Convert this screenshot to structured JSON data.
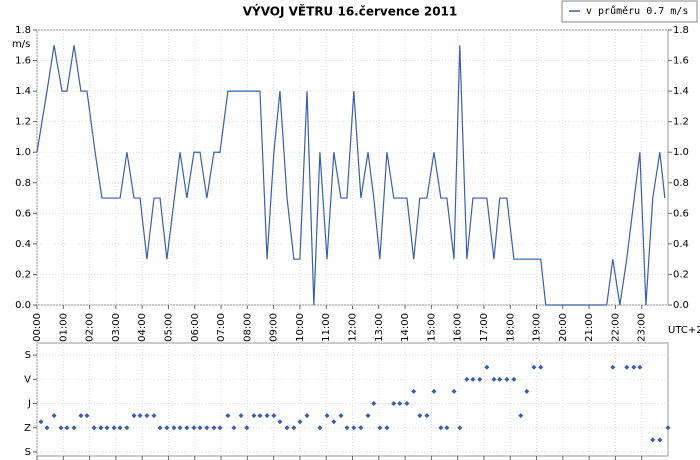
{
  "chart_data": [
    {
      "type": "line",
      "title": "VÝVOJ VĚTRU  16.července 2011",
      "y_label": "m/s",
      "x_label": "UTC+2",
      "grid": true,
      "xlim": [
        0,
        24
      ],
      "ylim": [
        0,
        1.8
      ],
      "y2lim": [
        0,
        1.8
      ],
      "xticks": [
        {
          "value": 0,
          "label": "00:00"
        },
        {
          "value": 1,
          "label": "01:00"
        },
        {
          "value": 2,
          "label": "02:00"
        },
        {
          "value": 3,
          "label": "03:00"
        },
        {
          "value": 4,
          "label": "04:00"
        },
        {
          "value": 5,
          "label": "05:00"
        },
        {
          "value": 6,
          "label": "06:00"
        },
        {
          "value": 7,
          "label": "07:00"
        },
        {
          "value": 8,
          "label": "08:00"
        },
        {
          "value": 9,
          "label": "09:00"
        },
        {
          "value": 10,
          "label": "10:00"
        },
        {
          "value": 11,
          "label": "11:00"
        },
        {
          "value": 12,
          "label": "12:00"
        },
        {
          "value": 13,
          "label": "13:00"
        },
        {
          "value": 14,
          "label": "14:00"
        },
        {
          "value": 15,
          "label": "15:00"
        },
        {
          "value": 16,
          "label": "16:00"
        },
        {
          "value": 17,
          "label": "17:00"
        },
        {
          "value": 18,
          "label": "18:00"
        },
        {
          "value": 19,
          "label": "19:00"
        },
        {
          "value": 20,
          "label": "20:00"
        },
        {
          "value": 21,
          "label": "21:00"
        },
        {
          "value": 22,
          "label": "22:00"
        },
        {
          "value": 23,
          "label": "23:00"
        }
      ],
      "yticks": [
        {
          "value": 0,
          "label": "0.0"
        },
        {
          "value": 0.2,
          "label": "0.2"
        },
        {
          "value": 0.4,
          "label": "0.4"
        },
        {
          "value": 0.6,
          "label": "0.6"
        },
        {
          "value": 0.8,
          "label": "0.8"
        },
        {
          "value": 1,
          "label": "1.0"
        },
        {
          "value": 1.2,
          "label": "1.2"
        },
        {
          "value": 1.4,
          "label": "1.4"
        },
        {
          "value": 1.6,
          "label": "1.6"
        },
        {
          "value": 1.8,
          "label": "1.8"
        }
      ],
      "y2ticks": [
        {
          "value": 0,
          "label": "0.0"
        },
        {
          "value": 0.2,
          "label": "0.2"
        },
        {
          "value": 0.4,
          "label": "0.4"
        },
        {
          "value": 0.6,
          "label": "0.6"
        },
        {
          "value": 0.8,
          "label": "0.8"
        },
        {
          "value": 1,
          "label": "1.0"
        },
        {
          "value": 1.2,
          "label": "1.2"
        },
        {
          "value": 1.4,
          "label": "1.4"
        },
        {
          "value": 1.6,
          "label": "1.6"
        },
        {
          "value": 1.8,
          "label": "1.8"
        }
      ],
      "series": [
        {
          "name": "v průměru 0.7 m/s",
          "color": "#3a5fa8",
          "x": [
            0,
            0.38,
            0.65,
            0.95,
            1.14,
            1.41,
            1.67,
            1.9,
            2.21,
            2.47,
            3.16,
            3.42,
            3.69,
            3.92,
            4.18,
            4.45,
            4.68,
            4.94,
            5.44,
            5.7,
            5.97,
            6.2,
            6.46,
            6.73,
            6.96,
            7.26,
            8.48,
            8.75,
            9.01,
            9.24,
            9.51,
            9.77,
            10.0,
            10.27,
            10.53,
            10.76,
            11.03,
            11.29,
            11.56,
            11.79,
            12.05,
            12.32,
            12.59,
            12.81,
            13.04,
            13.31,
            13.57,
            14.07,
            14.33,
            14.56,
            14.83,
            15.1,
            15.36,
            15.59,
            15.86,
            16.08,
            16.35,
            16.58,
            17.11,
            17.38,
            17.6,
            17.87,
            18.14,
            19.16,
            19.35,
            21.67,
            21.9,
            22.17,
            22.43,
            22.93,
            23.16,
            23.42,
            23.69,
            23.88
          ],
          "values": [
            1.0,
            1.4,
            1.7,
            1.4,
            1.4,
            1.7,
            1.4,
            1.4,
            1.0,
            0.7,
            0.7,
            1.0,
            0.7,
            0.7,
            0.3,
            0.7,
            0.7,
            0.3,
            1.0,
            0.7,
            1.0,
            1.0,
            0.7,
            1.0,
            1.0,
            1.4,
            1.4,
            0.3,
            1.0,
            1.4,
            0.7,
            0.3,
            0.3,
            1.4,
            0.0,
            1.0,
            0.3,
            1.0,
            0.7,
            0.7,
            1.4,
            0.7,
            1.0,
            0.7,
            0.3,
            1.0,
            0.7,
            0.7,
            0.3,
            0.7,
            0.7,
            1.0,
            0.7,
            0.7,
            0.3,
            1.7,
            0.3,
            0.7,
            0.7,
            0.3,
            0.7,
            0.7,
            0.3,
            0.3,
            0.0,
            0.0,
            0.3,
            0.0,
            0.3,
            1.0,
            0.0,
            0.7,
            1.0,
            0.7
          ]
        }
      ]
    },
    {
      "type": "scatter",
      "grid": true,
      "y_inverted": true,
      "xlim": [
        0,
        24
      ],
      "ylim": [
        -45,
        375
      ],
      "xticks": [
        0,
        1,
        2,
        3,
        4,
        5,
        6,
        7,
        8,
        9,
        10,
        11,
        12,
        13,
        14,
        15,
        16,
        17,
        18,
        19,
        20,
        21,
        22,
        23
      ],
      "yticks": [
        {
          "value": 0,
          "label": "S"
        },
        {
          "value": 90,
          "label": "V"
        },
        {
          "value": 180,
          "label": "J"
        },
        {
          "value": 270,
          "label": "Z"
        },
        {
          "value": 360,
          "label": "S"
        }
      ],
      "series": [
        {
          "color": "#3a5fa8",
          "x": [
            0.15,
            0.38,
            0.65,
            0.91,
            1.14,
            1.41,
            1.67,
            1.9,
            2.17,
            2.43,
            2.66,
            2.93,
            3.16,
            3.42,
            3.69,
            3.92,
            4.18,
            4.45,
            4.68,
            4.94,
            5.21,
            5.44,
            5.7,
            5.97,
            6.2,
            6.46,
            6.73,
            6.96,
            7.26,
            7.49,
            7.76,
            7.98,
            8.25,
            8.48,
            8.75,
            9.01,
            9.24,
            9.51,
            9.77,
            10.0,
            10.27,
            10.76,
            11.03,
            11.29,
            11.56,
            11.79,
            12.05,
            12.32,
            12.59,
            12.81,
            13.04,
            13.31,
            13.57,
            13.8,
            14.07,
            14.33,
            14.56,
            14.83,
            15.1,
            15.36,
            15.59,
            15.86,
            16.08,
            16.35,
            16.58,
            16.84,
            17.11,
            17.38,
            17.6,
            17.87,
            18.14,
            18.4,
            18.63,
            18.9,
            19.16,
            21.9,
            22.43,
            22.7,
            22.93,
            23.42,
            23.69,
            24.0
          ],
          "values": [
            247.5,
            270,
            225,
            270,
            270,
            270,
            225,
            225,
            270,
            270,
            270,
            270,
            270,
            270,
            225,
            225,
            225,
            225,
            270,
            270,
            270,
            270,
            270,
            270,
            270,
            270,
            270,
            270,
            225,
            270,
            225,
            270,
            225,
            225,
            225,
            225,
            247.5,
            270,
            270,
            247.5,
            225,
            270,
            225,
            247.5,
            225,
            270,
            270,
            270,
            225,
            180,
            270,
            270,
            180,
            180,
            180,
            135,
            225,
            225,
            135,
            270,
            270,
            135,
            270,
            90,
            90,
            90,
            45,
            90,
            90,
            90,
            90,
            225,
            135,
            45,
            45,
            45,
            45,
            45,
            45,
            315,
            315,
            270
          ]
        }
      ]
    }
  ]
}
